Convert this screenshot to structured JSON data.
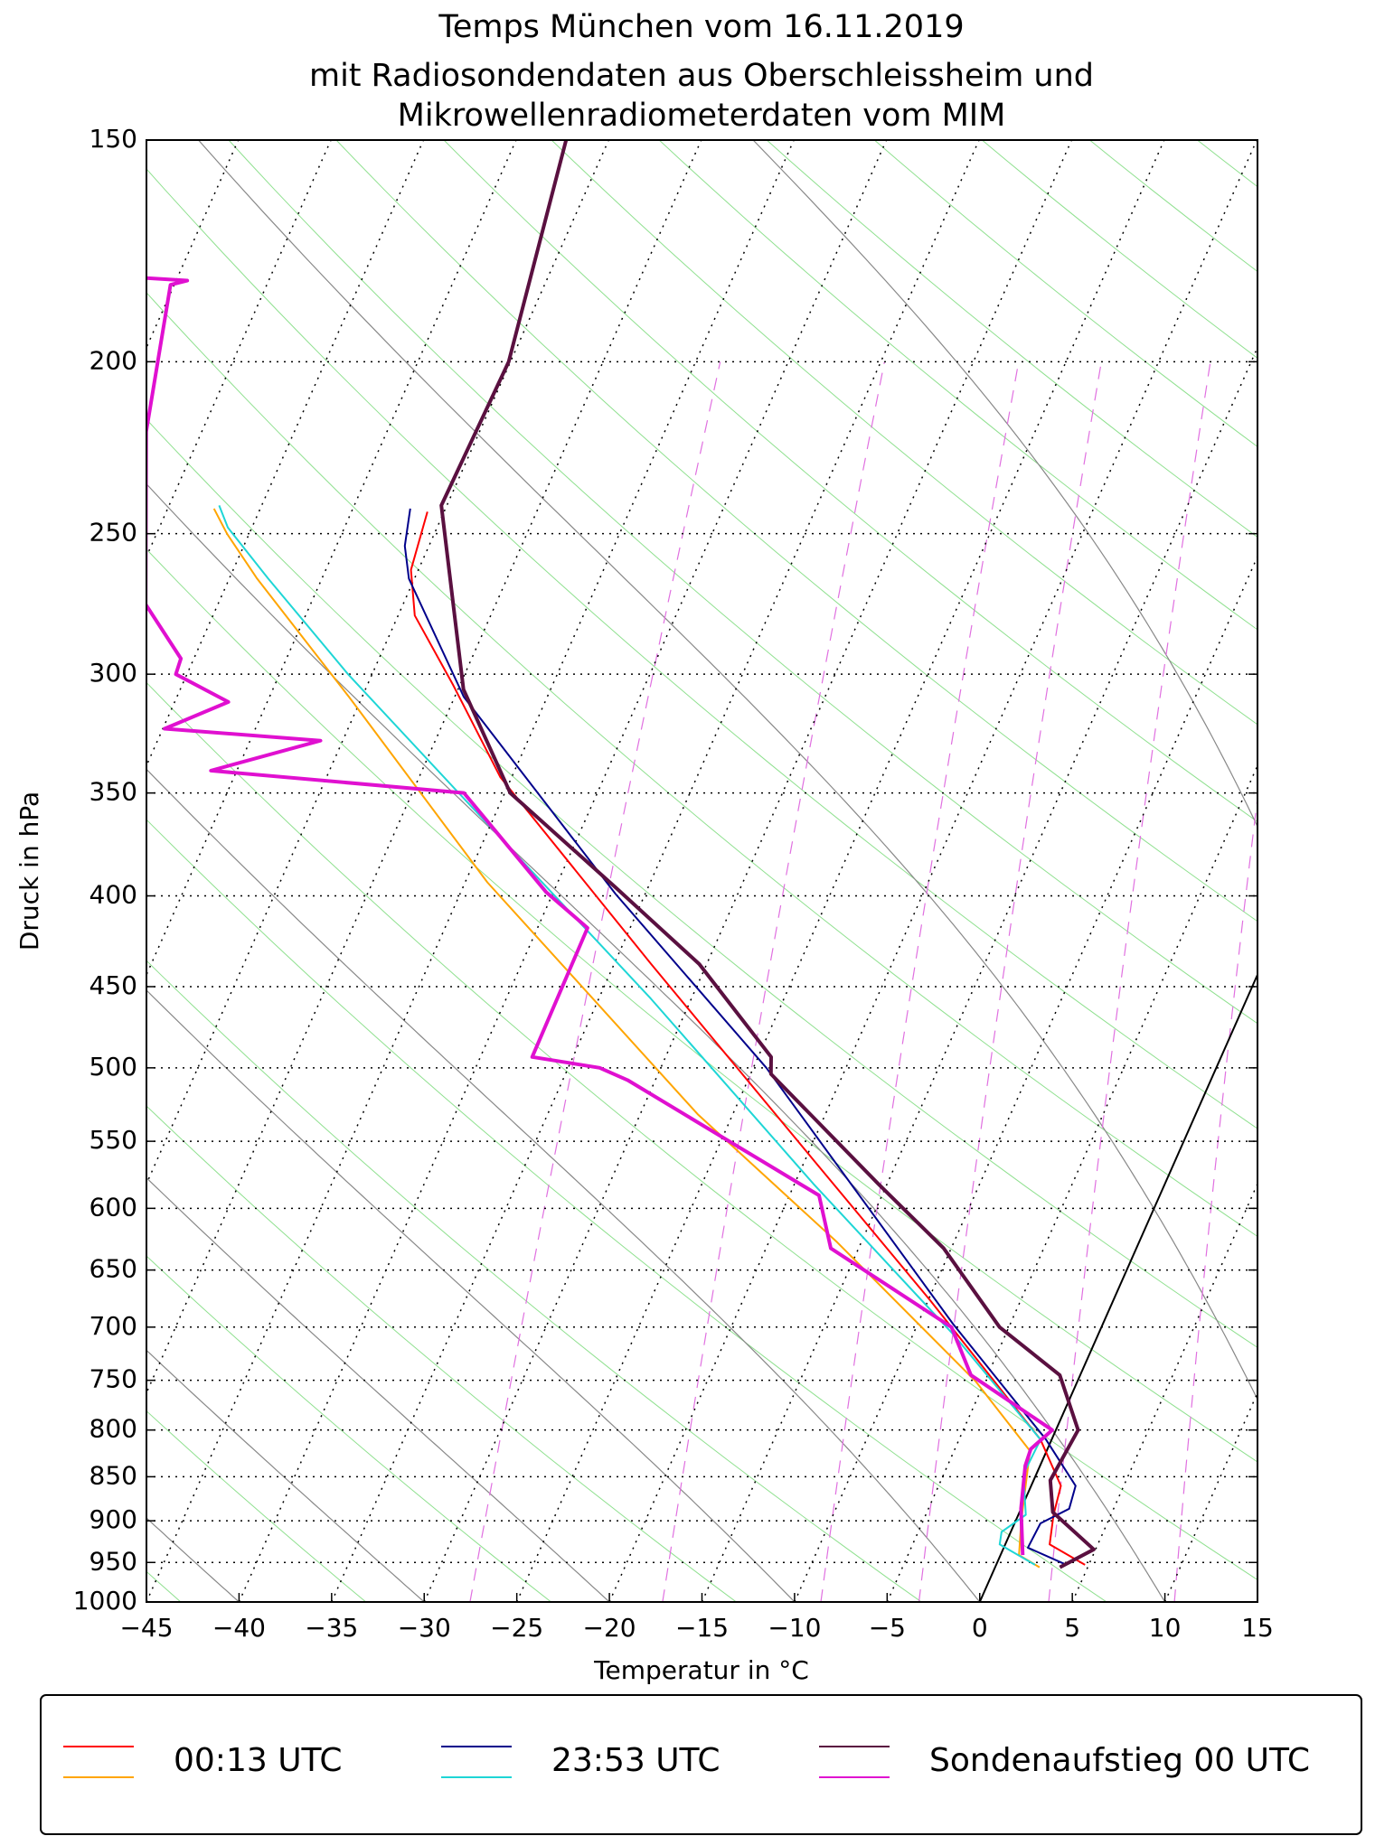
{
  "chart_data": {
    "type": "skewt",
    "title": [
      "Temps München vom 16.11.2019",
      "mit Radiosondendaten aus Oberschleissheim und",
      "Mikrowellenradiometerdaten vom MIM"
    ],
    "xlabel": "Temperatur in °C",
    "ylabel": "Druck in hPa",
    "xlim": [
      -45,
      15
    ],
    "xticks": [
      {
        "value": -45,
        "label": "−45"
      },
      {
        "value": -40,
        "label": "−40"
      },
      {
        "value": -35,
        "label": "−35"
      },
      {
        "value": -30,
        "label": "−30"
      },
      {
        "value": -25,
        "label": "−25"
      },
      {
        "value": -20,
        "label": "−20"
      },
      {
        "value": -15,
        "label": "−15"
      },
      {
        "value": -10,
        "label": "−10"
      },
      {
        "value": -5,
        "label": "−5"
      },
      0,
      5,
      10,
      15
    ],
    "ylim": [
      1000,
      150
    ],
    "yscale": "log",
    "yticks": [
      1000,
      950,
      900,
      850,
      800,
      750,
      700,
      650,
      600,
      550,
      500,
      450,
      400,
      350,
      300,
      250,
      200,
      150
    ],
    "grid": true,
    "legend": "bottom",
    "series": [
      {
        "name": "00:13 UTC",
        "color": "#ff0000",
        "width": 2,
        "pressure": [
          953,
          928,
          893,
          860,
          810,
          676,
          564,
          437,
          343,
          304,
          278,
          262,
          243
        ],
        "values": [
          4.8,
          2.4,
          1.9,
          1.6,
          -0.6,
          -9.9,
          -19.5,
          -33.0,
          -45.6,
          -50.4,
          -54.1,
          -55.4,
          -55.9
        ]
      },
      {
        "name": "00:13 UTC",
        "color": "#ffa500",
        "width": 2,
        "pressure": [
          956,
          941,
          900,
          822,
          751,
          627,
          531,
          393,
          309,
          265,
          250,
          242
        ],
        "values": [
          2.4,
          1.0,
          0.3,
          -0.9,
          -5.5,
          -16.3,
          -26.9,
          -43.8,
          -55.7,
          -63.5,
          -66.2,
          -67.5
        ]
      },
      {
        "name": "23:53 UTC",
        "color": "#00008b",
        "width": 2,
        "pressure": [
          953,
          932,
          903,
          886,
          860,
          810,
          697,
          500,
          399,
          309,
          265,
          254,
          242
        ],
        "values": [
          3.8,
          1.3,
          1.4,
          2.6,
          2.4,
          -0.3,
          -8.1,
          -24.3,
          -36.6,
          -49.5,
          -55.3,
          -56.3,
          -56.9
        ]
      },
      {
        "name": "23:53 UTC",
        "color": "#1ed6d6",
        "width": 2,
        "pressure": [
          953,
          928,
          913,
          893,
          847,
          810,
          707,
          581,
          457,
          370,
          300,
          265,
          248,
          241
        ],
        "values": [
          2.1,
          -0.3,
          -0.5,
          0.4,
          -0.7,
          -0.6,
          -7.8,
          -19.0,
          -32.2,
          -44.3,
          -56.3,
          -62.9,
          -66.3,
          -67.3
        ]
      },
      {
        "name": "Sondenaufstieg 00 UTC",
        "color": "#5a1040",
        "width": 4,
        "pressure": [
          956,
          934,
          890,
          854,
          800,
          745,
          700,
          632,
          581,
          504,
          493,
          437,
          396,
          350,
          306,
          241,
          200,
          150
        ],
        "values": [
          3.5,
          4.9,
          1.8,
          0.9,
          1.2,
          -1.1,
          -5.5,
          -10.4,
          -15.5,
          -23.9,
          -24.3,
          -30.4,
          -36.7,
          -44.7,
          -49.7,
          -55.3,
          -55.1,
          -57.3
        ]
      },
      {
        "name": "Sondenaufstieg 00 UTC",
        "color": "#e010d0",
        "width": 4,
        "pressure": [
          941,
          886,
          838,
          820,
          800,
          745,
          700,
          632,
          590,
          508,
          500,
          493,
          417,
          398,
          350,
          340,
          327,
          322,
          311,
          300,
          294,
          274,
          219,
          181,
          180,
          179
        ],
        "values": [
          1.2,
          0.0,
          -0.8,
          -0.9,
          -0.2,
          -5.9,
          -8.1,
          -16.5,
          -18.4,
          -31.5,
          -33.3,
          -37.2,
          -37.3,
          -40.4,
          -47.2,
          -61.4,
          -56.2,
          -64.9,
          -62.1,
          -65.6,
          -65.7,
          -68.9,
          -73.0,
          -75.2,
          -74.4,
          -78.3
        ]
      }
    ]
  }
}
